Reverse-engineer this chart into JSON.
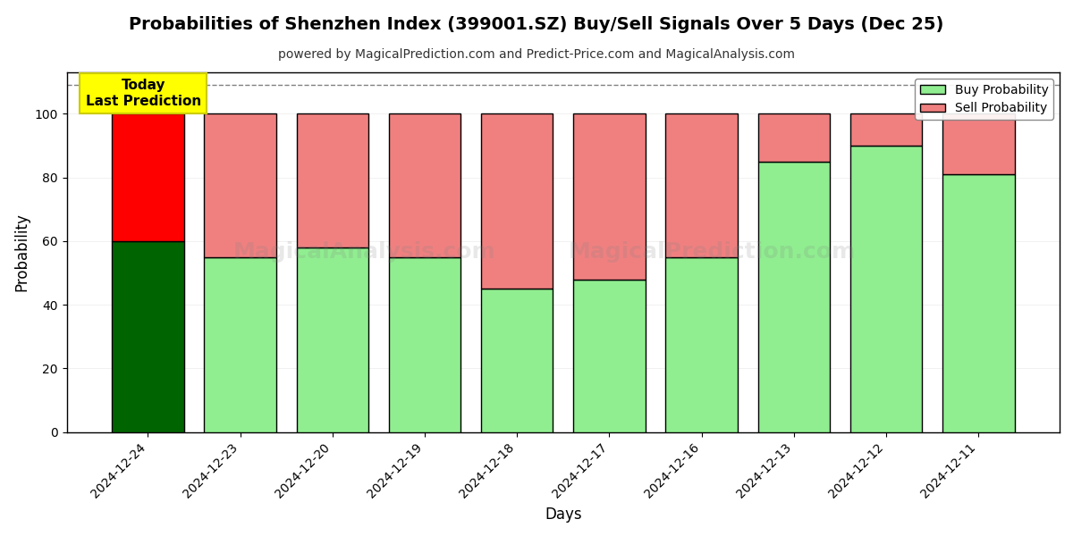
{
  "title": "Probabilities of Shenzhen Index (399001.SZ) Buy/Sell Signals Over 5 Days (Dec 25)",
  "subtitle": "powered by MagicalPrediction.com and Predict-Price.com and MagicalAnalysis.com",
  "xlabel": "Days",
  "ylabel": "Probability",
  "dates": [
    "2024-12-24",
    "2024-12-23",
    "2024-12-20",
    "2024-12-19",
    "2024-12-18",
    "2024-12-17",
    "2024-12-16",
    "2024-12-13",
    "2024-12-12",
    "2024-12-11"
  ],
  "buy_values": [
    60,
    55,
    58,
    55,
    45,
    48,
    55,
    85,
    90,
    81
  ],
  "sell_values": [
    40,
    45,
    42,
    45,
    55,
    52,
    45,
    15,
    10,
    19
  ],
  "buy_color_today": "#006400",
  "sell_color_today": "#ff0000",
  "buy_color_normal": "#90EE90",
  "sell_color_normal": "#F08080",
  "bar_edgecolor": "#000000",
  "today_annotation_bg": "#ffff00",
  "today_annotation_text": "Today\nLast Prediction",
  "ylim": [
    0,
    113
  ],
  "yticks": [
    0,
    20,
    40,
    60,
    80,
    100
  ],
  "dashed_line_y": 109,
  "legend_labels": [
    "Buy Probability",
    "Sell Probability"
  ],
  "legend_colors": [
    "#90EE90",
    "#F08080"
  ],
  "watermark1": "MagicalAnalysis.com",
  "watermark2": "MagicalPrediction.com",
  "grid_color": "#aaaaaa",
  "title_fontsize": 14,
  "subtitle_fontsize": 10
}
